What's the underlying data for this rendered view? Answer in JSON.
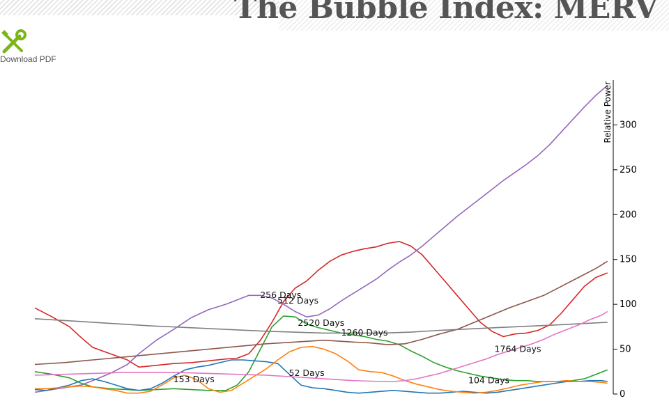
{
  "page": {
    "title": "The Bubble Index: MERV",
    "download_label": "Download PDF",
    "download_icon": "wrench-screwdriver-icon"
  },
  "colors": {
    "title": "#555555",
    "icon": "#7cb518"
  },
  "chart_data": {
    "type": "line",
    "title": "",
    "xlabel": "",
    "ylabel": "Relative Power",
    "ylim": [
      0,
      350
    ],
    "xlim": [
      0,
      100
    ],
    "yticks": [
      0,
      50,
      100,
      150,
      200,
      250,
      300
    ],
    "grid": false,
    "legend": "none",
    "series": [
      {
        "name": "256 Days",
        "color": "#d62728",
        "label_at": [
          42.5,
          107
        ],
        "points": [
          [
            0,
            96
          ],
          [
            3,
            86
          ],
          [
            6,
            75
          ],
          [
            8,
            63
          ],
          [
            10,
            52
          ],
          [
            13,
            45
          ],
          [
            16,
            38
          ],
          [
            18,
            30
          ],
          [
            21,
            32
          ],
          [
            24,
            34
          ],
          [
            27,
            35
          ],
          [
            30,
            37
          ],
          [
            33,
            39
          ],
          [
            35,
            40
          ],
          [
            37,
            45
          ],
          [
            39,
            60
          ],
          [
            41,
            80
          ],
          [
            43,
            103
          ],
          [
            45,
            118
          ],
          [
            47,
            126
          ],
          [
            49,
            138
          ],
          [
            51,
            148
          ],
          [
            53,
            155
          ],
          [
            55,
            159
          ],
          [
            57,
            162
          ],
          [
            59,
            164
          ],
          [
            61,
            168
          ],
          [
            63,
            170
          ],
          [
            65,
            165
          ],
          [
            67,
            155
          ],
          [
            69,
            140
          ],
          [
            71,
            125
          ],
          [
            73,
            110
          ],
          [
            75,
            95
          ],
          [
            77,
            80
          ],
          [
            79,
            70
          ],
          [
            81,
            64
          ],
          [
            83,
            67
          ],
          [
            85,
            68
          ],
          [
            87,
            71
          ],
          [
            89,
            77
          ],
          [
            91,
            90
          ],
          [
            93,
            105
          ],
          [
            95,
            120
          ],
          [
            97,
            130
          ],
          [
            99,
            135
          ]
        ]
      },
      {
        "name": "512 Days",
        "color": "#9467bd",
        "label_at": [
          45.5,
          101
        ],
        "points": [
          [
            0,
            2
          ],
          [
            3,
            5
          ],
          [
            6,
            8
          ],
          [
            8,
            10
          ],
          [
            10,
            15
          ],
          [
            13,
            23
          ],
          [
            16,
            33
          ],
          [
            18,
            45
          ],
          [
            21,
            60
          ],
          [
            24,
            72
          ],
          [
            27,
            85
          ],
          [
            30,
            94
          ],
          [
            33,
            100
          ],
          [
            35,
            105
          ],
          [
            37,
            110
          ],
          [
            39,
            110
          ],
          [
            41,
            107
          ],
          [
            43,
            100
          ],
          [
            45,
            92
          ],
          [
            47,
            86
          ],
          [
            49,
            88
          ],
          [
            51,
            95
          ],
          [
            53,
            104
          ],
          [
            55,
            112
          ],
          [
            57,
            120
          ],
          [
            59,
            128
          ],
          [
            61,
            138
          ],
          [
            63,
            147
          ],
          [
            65,
            155
          ],
          [
            67,
            165
          ],
          [
            69,
            176
          ],
          [
            71,
            187
          ],
          [
            73,
            198
          ],
          [
            75,
            208
          ],
          [
            77,
            218
          ],
          [
            79,
            228
          ],
          [
            81,
            238
          ],
          [
            83,
            247
          ],
          [
            85,
            256
          ],
          [
            87,
            266
          ],
          [
            89,
            278
          ],
          [
            91,
            292
          ],
          [
            93,
            306
          ],
          [
            95,
            320
          ],
          [
            97,
            333
          ],
          [
            99,
            344
          ]
        ]
      },
      {
        "name": "2520 Days",
        "color": "#2ca02c",
        "label_at": [
          49.5,
          76
        ],
        "points": [
          [
            0,
            25
          ],
          [
            3,
            22
          ],
          [
            6,
            18
          ],
          [
            8,
            12
          ],
          [
            10,
            8
          ],
          [
            13,
            6
          ],
          [
            16,
            5
          ],
          [
            18,
            4
          ],
          [
            21,
            5
          ],
          [
            24,
            6
          ],
          [
            27,
            5
          ],
          [
            30,
            4
          ],
          [
            33,
            4
          ],
          [
            35,
            10
          ],
          [
            37,
            25
          ],
          [
            39,
            50
          ],
          [
            41,
            75
          ],
          [
            43,
            87
          ],
          [
            45,
            86
          ],
          [
            47,
            78
          ],
          [
            49,
            74
          ],
          [
            51,
            71
          ],
          [
            53,
            68
          ],
          [
            55,
            66
          ],
          [
            57,
            64
          ],
          [
            59,
            61
          ],
          [
            61,
            59
          ],
          [
            63,
            55
          ],
          [
            65,
            48
          ],
          [
            67,
            42
          ],
          [
            69,
            35
          ],
          [
            71,
            30
          ],
          [
            73,
            26
          ],
          [
            75,
            23
          ],
          [
            77,
            20
          ],
          [
            79,
            18
          ],
          [
            81,
            16
          ],
          [
            83,
            15
          ],
          [
            85,
            15
          ],
          [
            87,
            14
          ],
          [
            89,
            14
          ],
          [
            91,
            14
          ],
          [
            93,
            15
          ],
          [
            95,
            17
          ],
          [
            97,
            22
          ],
          [
            99,
            27
          ]
        ]
      },
      {
        "name": "1260 Days",
        "color": "#8c564b",
        "label_at": [
          57,
          65
        ],
        "points": [
          [
            0,
            33
          ],
          [
            5,
            35
          ],
          [
            10,
            38
          ],
          [
            15,
            41
          ],
          [
            20,
            44
          ],
          [
            25,
            47
          ],
          [
            30,
            50
          ],
          [
            35,
            53
          ],
          [
            40,
            56
          ],
          [
            45,
            58
          ],
          [
            50,
            60
          ],
          [
            55,
            58
          ],
          [
            58,
            57
          ],
          [
            61,
            55
          ],
          [
            64,
            56
          ],
          [
            67,
            61
          ],
          [
            70,
            67
          ],
          [
            73,
            72
          ],
          [
            76,
            80
          ],
          [
            79,
            88
          ],
          [
            82,
            96
          ],
          [
            85,
            103
          ],
          [
            88,
            110
          ],
          [
            91,
            120
          ],
          [
            94,
            130
          ],
          [
            97,
            140
          ],
          [
            99,
            148
          ]
        ]
      },
      {
        "name": "1764 Days",
        "color": "#7f7f7f",
        "label_at": [
          83.5,
          47
        ],
        "points": [
          [
            0,
            84
          ],
          [
            10,
            80
          ],
          [
            20,
            76
          ],
          [
            30,
            73
          ],
          [
            40,
            70
          ],
          [
            50,
            68
          ],
          [
            55,
            68
          ],
          [
            60,
            68
          ],
          [
            65,
            69
          ],
          [
            70,
            71
          ],
          [
            80,
            74
          ],
          [
            90,
            77
          ],
          [
            99,
            80
          ]
        ]
      },
      {
        "name": "52 Days",
        "color": "#1f77b4",
        "label_at": [
          47,
          20
        ],
        "points": [
          [
            0,
            5
          ],
          [
            2,
            4
          ],
          [
            4,
            7
          ],
          [
            6,
            10
          ],
          [
            8,
            15
          ],
          [
            10,
            17
          ],
          [
            12,
            14
          ],
          [
            14,
            10
          ],
          [
            16,
            6
          ],
          [
            18,
            4
          ],
          [
            20,
            6
          ],
          [
            22,
            12
          ],
          [
            24,
            20
          ],
          [
            26,
            27
          ],
          [
            28,
            30
          ],
          [
            30,
            32
          ],
          [
            32,
            35
          ],
          [
            34,
            38
          ],
          [
            36,
            38
          ],
          [
            38,
            37
          ],
          [
            40,
            36
          ],
          [
            42,
            34
          ],
          [
            44,
            22
          ],
          [
            46,
            10
          ],
          [
            48,
            7
          ],
          [
            50,
            6
          ],
          [
            52,
            4
          ],
          [
            54,
            2
          ],
          [
            56,
            1
          ],
          [
            58,
            2
          ],
          [
            60,
            3
          ],
          [
            62,
            4
          ],
          [
            64,
            3
          ],
          [
            66,
            2
          ],
          [
            68,
            1
          ],
          [
            70,
            1
          ],
          [
            72,
            2
          ],
          [
            74,
            3
          ],
          [
            76,
            2
          ],
          [
            78,
            1
          ],
          [
            80,
            2
          ],
          [
            82,
            4
          ],
          [
            84,
            6
          ],
          [
            86,
            8
          ],
          [
            88,
            10
          ],
          [
            90,
            12
          ],
          [
            92,
            14
          ],
          [
            94,
            14
          ],
          [
            96,
            15
          ],
          [
            98,
            15
          ],
          [
            99,
            14
          ]
        ]
      },
      {
        "name": "153 Days",
        "color": "#ff7f0e",
        "label_at": [
          27.5,
          13
        ],
        "points": [
          [
            0,
            6
          ],
          [
            2,
            6
          ],
          [
            4,
            7
          ],
          [
            6,
            8
          ],
          [
            8,
            9
          ],
          [
            10,
            8
          ],
          [
            12,
            6
          ],
          [
            14,
            4
          ],
          [
            16,
            1
          ],
          [
            18,
            1
          ],
          [
            20,
            3
          ],
          [
            22,
            10
          ],
          [
            24,
            18
          ],
          [
            26,
            21
          ],
          [
            28,
            16
          ],
          [
            30,
            6
          ],
          [
            32,
            2
          ],
          [
            34,
            4
          ],
          [
            36,
            12
          ],
          [
            38,
            20
          ],
          [
            40,
            28
          ],
          [
            42,
            38
          ],
          [
            44,
            47
          ],
          [
            46,
            52
          ],
          [
            48,
            53
          ],
          [
            50,
            50
          ],
          [
            52,
            45
          ],
          [
            54,
            37
          ],
          [
            56,
            27
          ],
          [
            58,
            25
          ],
          [
            60,
            24
          ],
          [
            62,
            20
          ],
          [
            64,
            15
          ],
          [
            66,
            11
          ],
          [
            68,
            8
          ],
          [
            70,
            5
          ],
          [
            72,
            3
          ],
          [
            74,
            2
          ],
          [
            76,
            1
          ],
          [
            78,
            2
          ],
          [
            80,
            4
          ],
          [
            82,
            7
          ],
          [
            84,
            10
          ],
          [
            86,
            12
          ],
          [
            88,
            14
          ],
          [
            90,
            14
          ],
          [
            92,
            15
          ],
          [
            94,
            14
          ],
          [
            96,
            14
          ],
          [
            98,
            13
          ],
          [
            99,
            12
          ]
        ]
      },
      {
        "name": "104 Days",
        "color": "#e377c2",
        "label_at": [
          78.5,
          12
        ],
        "points": [
          [
            0,
            21
          ],
          [
            5,
            22
          ],
          [
            10,
            23
          ],
          [
            15,
            24
          ],
          [
            20,
            24
          ],
          [
            25,
            24
          ],
          [
            30,
            23
          ],
          [
            35,
            22
          ],
          [
            40,
            21
          ],
          [
            45,
            19
          ],
          [
            50,
            17
          ],
          [
            55,
            15
          ],
          [
            60,
            14
          ],
          [
            62,
            14
          ],
          [
            64,
            15
          ],
          [
            66,
            17
          ],
          [
            68,
            20
          ],
          [
            70,
            23
          ],
          [
            72,
            27
          ],
          [
            74,
            31
          ],
          [
            76,
            35
          ],
          [
            78,
            39
          ],
          [
            80,
            44
          ],
          [
            82,
            48
          ],
          [
            84,
            52
          ],
          [
            86,
            56
          ],
          [
            88,
            61
          ],
          [
            90,
            67
          ],
          [
            92,
            72
          ],
          [
            94,
            77
          ],
          [
            96,
            83
          ],
          [
            98,
            88
          ],
          [
            99,
            92
          ]
        ]
      }
    ]
  }
}
